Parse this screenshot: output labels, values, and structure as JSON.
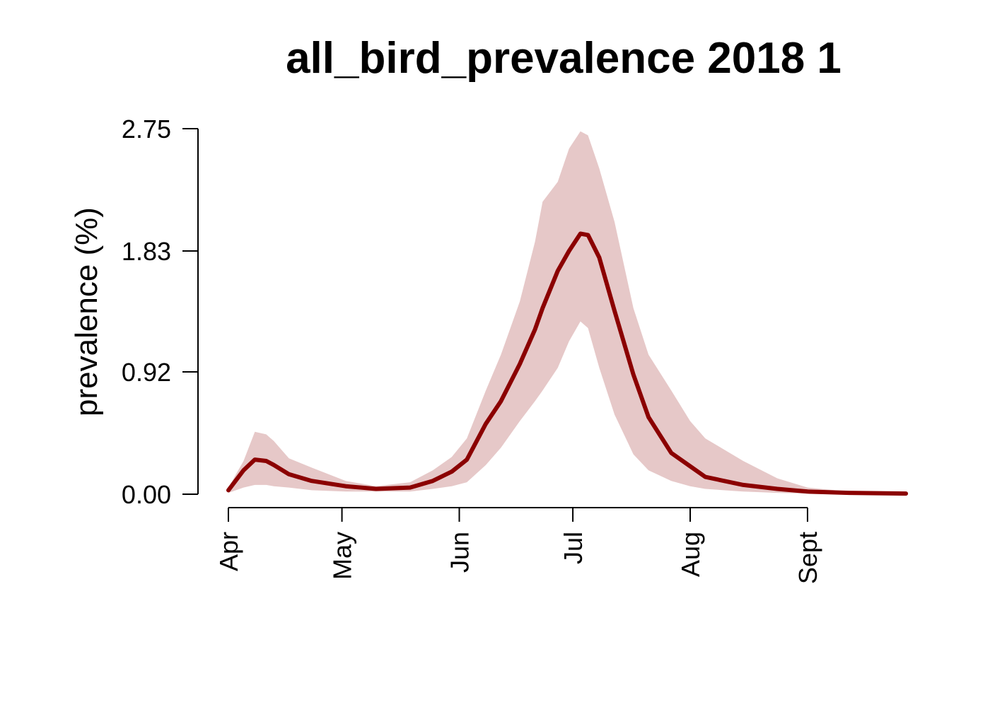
{
  "chart_data": {
    "type": "line",
    "title": "all_bird_prevalence 2018 1",
    "y_label": "prevalence (%)",
    "x": [
      0,
      4,
      7,
      10,
      12,
      16,
      22,
      31,
      39,
      48,
      54,
      59,
      63,
      68,
      72,
      77,
      81,
      83,
      87,
      90,
      93,
      95,
      98,
      102,
      107,
      111,
      117,
      122,
      126,
      136,
      145,
      153,
      164,
      179
    ],
    "series": [
      {
        "color": "#8b0000",
        "values": [
          0.03,
          0.18,
          0.26,
          0.25,
          0.22,
          0.15,
          0.1,
          0.06,
          0.04,
          0.05,
          0.1,
          0.17,
          0.26,
          0.53,
          0.7,
          0.98,
          1.24,
          1.4,
          1.68,
          1.83,
          1.96,
          1.95,
          1.78,
          1.38,
          0.9,
          0.58,
          0.31,
          0.21,
          0.13,
          0.07,
          0.04,
          0.02,
          0.01,
          0.005
        ]
      }
    ],
    "band": {
      "color": "#e6c8c8",
      "upper": [
        0.05,
        0.25,
        0.47,
        0.45,
        0.4,
        0.27,
        0.2,
        0.1,
        0.06,
        0.09,
        0.18,
        0.28,
        0.42,
        0.78,
        1.05,
        1.45,
        1.9,
        2.2,
        2.35,
        2.6,
        2.73,
        2.7,
        2.45,
        2.05,
        1.4,
        1.05,
        0.78,
        0.55,
        0.42,
        0.25,
        0.12,
        0.05,
        0.02,
        0.01
      ],
      "lower": [
        0.01,
        0.05,
        0.07,
        0.07,
        0.06,
        0.05,
        0.03,
        0.02,
        0.02,
        0.02,
        0.04,
        0.06,
        0.09,
        0.22,
        0.35,
        0.55,
        0.7,
        0.78,
        0.95,
        1.15,
        1.3,
        1.25,
        0.95,
        0.6,
        0.3,
        0.18,
        0.1,
        0.06,
        0.04,
        0.02,
        0.01,
        0.005,
        0.002,
        0.001
      ]
    },
    "xlim": [
      -7,
      186
    ],
    "ylim": [
      -0.11,
      2.86
    ],
    "xticks": [
      {
        "value": 0,
        "label": "Apr"
      },
      {
        "value": 30,
        "label": "May"
      },
      {
        "value": 61,
        "label": "Jun"
      },
      {
        "value": 91,
        "label": "Jul"
      },
      {
        "value": 122,
        "label": "Aug"
      },
      {
        "value": 153,
        "label": "Sept"
      }
    ],
    "yticks": [
      {
        "value": 0,
        "label": "0.00"
      },
      0.92,
      1.83,
      2.75
    ]
  }
}
